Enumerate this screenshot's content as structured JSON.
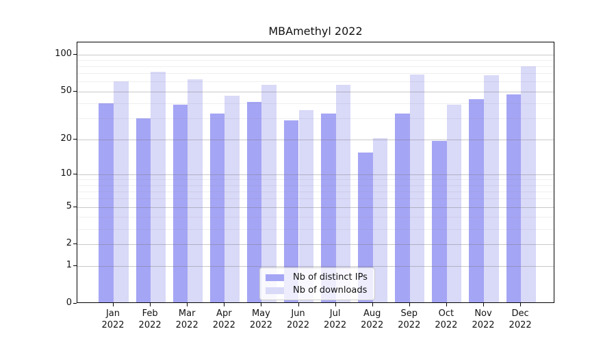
{
  "chart_data": {
    "type": "bar",
    "title": "MBAmethyl 2022",
    "categories": [
      "Jan",
      "Feb",
      "Mar",
      "Apr",
      "May",
      "Jun",
      "Jul",
      "Aug",
      "Sep",
      "Oct",
      "Nov",
      "Dec"
    ],
    "category_year": "2022",
    "series": [
      {
        "name": "Nb of distinct IPs",
        "color": "#a5a5f5",
        "values": [
          39,
          29,
          38,
          32,
          40,
          28,
          32,
          15,
          32,
          19,
          42,
          46
        ]
      },
      {
        "name": "Nb of downloads",
        "color": "#d9d9f8",
        "values": [
          59,
          70,
          61,
          45,
          55,
          34,
          55,
          20,
          67,
          38,
          66,
          78
        ]
      }
    ],
    "yscale": "log1p",
    "ylim": [
      0,
      125
    ],
    "yticks": [
      0,
      1,
      2,
      5,
      10,
      20,
      50,
      100
    ],
    "yticks_minor": [
      3,
      4,
      6,
      7,
      8,
      9,
      30,
      40,
      60,
      70,
      80,
      90
    ],
    "grid": true,
    "legend_position": "lower center",
    "xlabel": "",
    "ylabel": ""
  },
  "colors": {
    "bar_distinct_ips": "#a5a5f5",
    "bar_downloads": "#d9d9f8",
    "frame": "#000000",
    "legend_border": "#cccccc"
  }
}
